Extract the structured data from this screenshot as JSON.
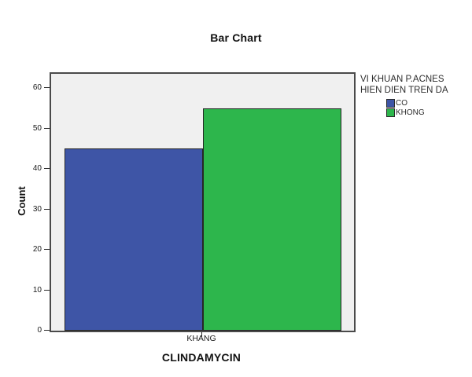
{
  "title": "Bar Chart",
  "chart_data": {
    "type": "bar",
    "categories": [
      "KHANG"
    ],
    "series": [
      {
        "name": "CO",
        "color": "#3E55A6",
        "values": [
          45
        ]
      },
      {
        "name": "KHONG",
        "color": "#2DB64C",
        "values": [
          55
        ]
      }
    ],
    "xlabel": "CLINDAMYCIN",
    "ylabel": "Count",
    "ylim": [
      0,
      60
    ],
    "yticks": [
      0,
      10,
      20,
      30,
      40,
      50,
      60
    ],
    "grid": false,
    "plot_background": "#F0F0F0",
    "legend": {
      "position": "right",
      "title_lines": [
        "VI KHUAN P.ACNES",
        "HIEN DIEN TREN DA"
      ]
    }
  }
}
